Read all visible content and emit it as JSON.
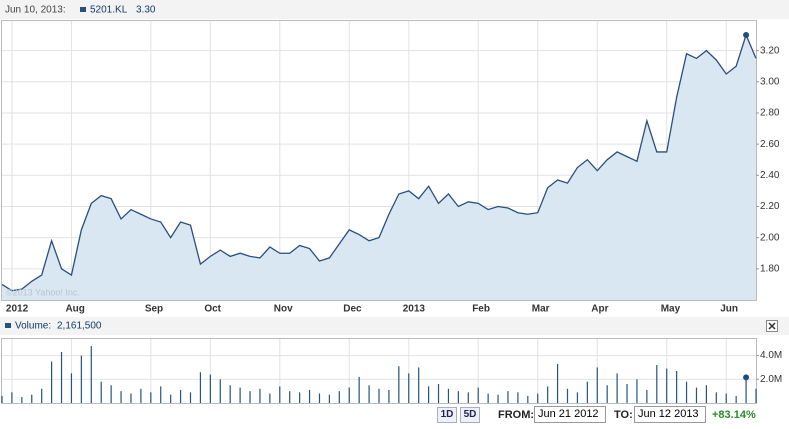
{
  "chart_data": [
    {
      "type": "area",
      "date_label": "Jun 10, 2013:",
      "watermark": "©2013 Yahoo! Inc.",
      "legend_value": {
        "value": 3.3,
        "label": "3.30"
      },
      "categories": [
        null,
        "2012",
        null,
        null,
        null,
        null,
        null,
        "Aug",
        null,
        null,
        null,
        null,
        null,
        null,
        null,
        "Sep",
        null,
        null,
        null,
        null,
        null,
        "Oct",
        null,
        null,
        null,
        null,
        null,
        null,
        "Nov",
        null,
        null,
        null,
        null,
        null,
        null,
        "Dec",
        null,
        null,
        null,
        null,
        null,
        "2013",
        null,
        null,
        null,
        null,
        null,
        null,
        "Feb",
        null,
        null,
        null,
        null,
        null,
        "Mar",
        null,
        null,
        null,
        null,
        null,
        "Apr",
        null,
        null,
        null,
        null,
        null,
        null,
        "May",
        null,
        null,
        null,
        null,
        null,
        "Jun",
        null,
        null,
        null
      ],
      "series": [
        {
          "name": "5201.KL",
          "color": "#2a4f7c",
          "values": [
            1.7,
            1.66,
            1.67,
            1.72,
            1.76,
            1.98,
            1.8,
            1.76,
            2.05,
            2.22,
            2.27,
            2.25,
            2.12,
            2.18,
            2.15,
            2.12,
            2.1,
            2.0,
            2.1,
            2.08,
            1.83,
            1.88,
            1.92,
            1.88,
            1.9,
            1.88,
            1.87,
            1.94,
            1.9,
            1.9,
            1.95,
            1.93,
            1.85,
            1.87,
            1.96,
            2.05,
            2.02,
            1.98,
            2.0,
            2.15,
            2.28,
            2.3,
            2.25,
            2.33,
            2.22,
            2.28,
            2.2,
            2.23,
            2.22,
            2.18,
            2.2,
            2.19,
            2.16,
            2.15,
            2.16,
            2.32,
            2.37,
            2.35,
            2.45,
            2.5,
            2.43,
            2.5,
            2.55,
            2.52,
            2.49,
            2.75,
            2.55,
            2.55,
            2.9,
            3.18,
            3.15,
            3.2,
            3.14,
            3.05,
            3.1,
            3.3,
            3.15
          ]
        }
      ],
      "ylim": [
        1.6,
        3.39
      ],
      "yticks": [
        {
          "value": 1.8,
          "label": "1.80"
        },
        {
          "value": 2.0,
          "label": "2.00"
        },
        {
          "value": 2.2,
          "label": "2.20"
        },
        {
          "value": 2.4,
          "label": "2.40"
        },
        {
          "value": 2.6,
          "label": "2.60"
        },
        {
          "value": 2.8,
          "label": "2.80"
        },
        {
          "value": 3.0,
          "label": "3.00"
        },
        {
          "value": 3.2,
          "label": "3.20"
        }
      ],
      "grid": true
    },
    {
      "type": "bar",
      "legend_value": {
        "value": 2161500,
        "label": "2,161,500"
      },
      "series": [
        {
          "name": "Volume:",
          "color": "#24557f",
          "values": [
            600000,
            900000,
            500000,
            700000,
            1200000,
            3500000,
            4300000,
            2500000,
            4000000,
            4800000,
            1800000,
            1500000,
            1000000,
            800000,
            1200000,
            900000,
            1400000,
            700000,
            1100000,
            900000,
            2600000,
            2400000,
            2000000,
            1500000,
            1300000,
            1000000,
            1200000,
            800000,
            1400000,
            1000000,
            900000,
            1100000,
            800000,
            700000,
            1000000,
            1300000,
            2200000,
            1500000,
            1200000,
            1100000,
            3100000,
            2500000,
            3000000,
            1400000,
            1600000,
            1200000,
            1000000,
            900000,
            1300000,
            800000,
            700000,
            1000000,
            900000,
            600000,
            800000,
            1400000,
            3300000,
            1200000,
            900000,
            1800000,
            3000000,
            1500000,
            2500000,
            1600000,
            2000000,
            1100000,
            3200000,
            2900000,
            2700000,
            1800000,
            1300000,
            1500000,
            900000,
            800000,
            600000,
            2161500,
            1200000
          ]
        }
      ],
      "ylim": [
        0,
        5400000
      ],
      "yticks": [
        {
          "value": 2000000,
          "label": "2.0M"
        },
        {
          "value": 4000000,
          "label": "4.0M"
        }
      ],
      "grid": true
    }
  ],
  "controls": {
    "range_buttons": [
      "1D",
      "5D"
    ],
    "from_label": "FROM:",
    "from": "Jun 21 2012",
    "to_label": "TO:",
    "to": "Jun 12 2013",
    "change": "+83.14%"
  }
}
